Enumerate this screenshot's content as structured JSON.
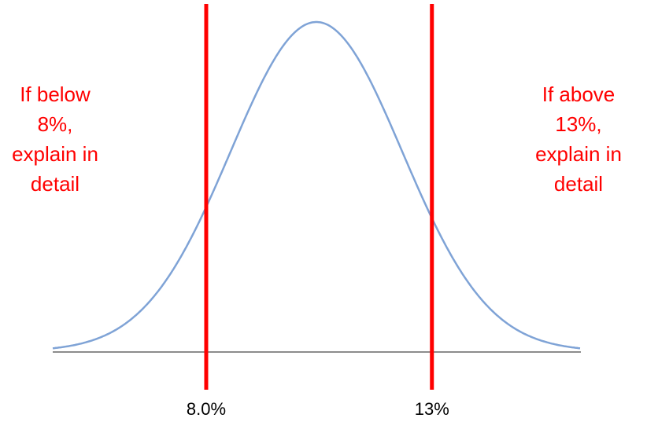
{
  "chart_data": {
    "type": "distribution",
    "xlim": [
      4.6,
      16.3
    ],
    "xticks": [
      {
        "value": 8,
        "label": "8.0%"
      },
      {
        "value": 13,
        "label": "13%"
      }
    ],
    "threshold_color": "#ff0000",
    "curve_color": "#7fa3d6",
    "axis_color": "#8c8c8c",
    "annotations": [
      [
        "If below",
        "8%,",
        "explain in",
        "detail"
      ],
      [
        "If above",
        "13%,",
        "explain in",
        "detail"
      ]
    ]
  }
}
